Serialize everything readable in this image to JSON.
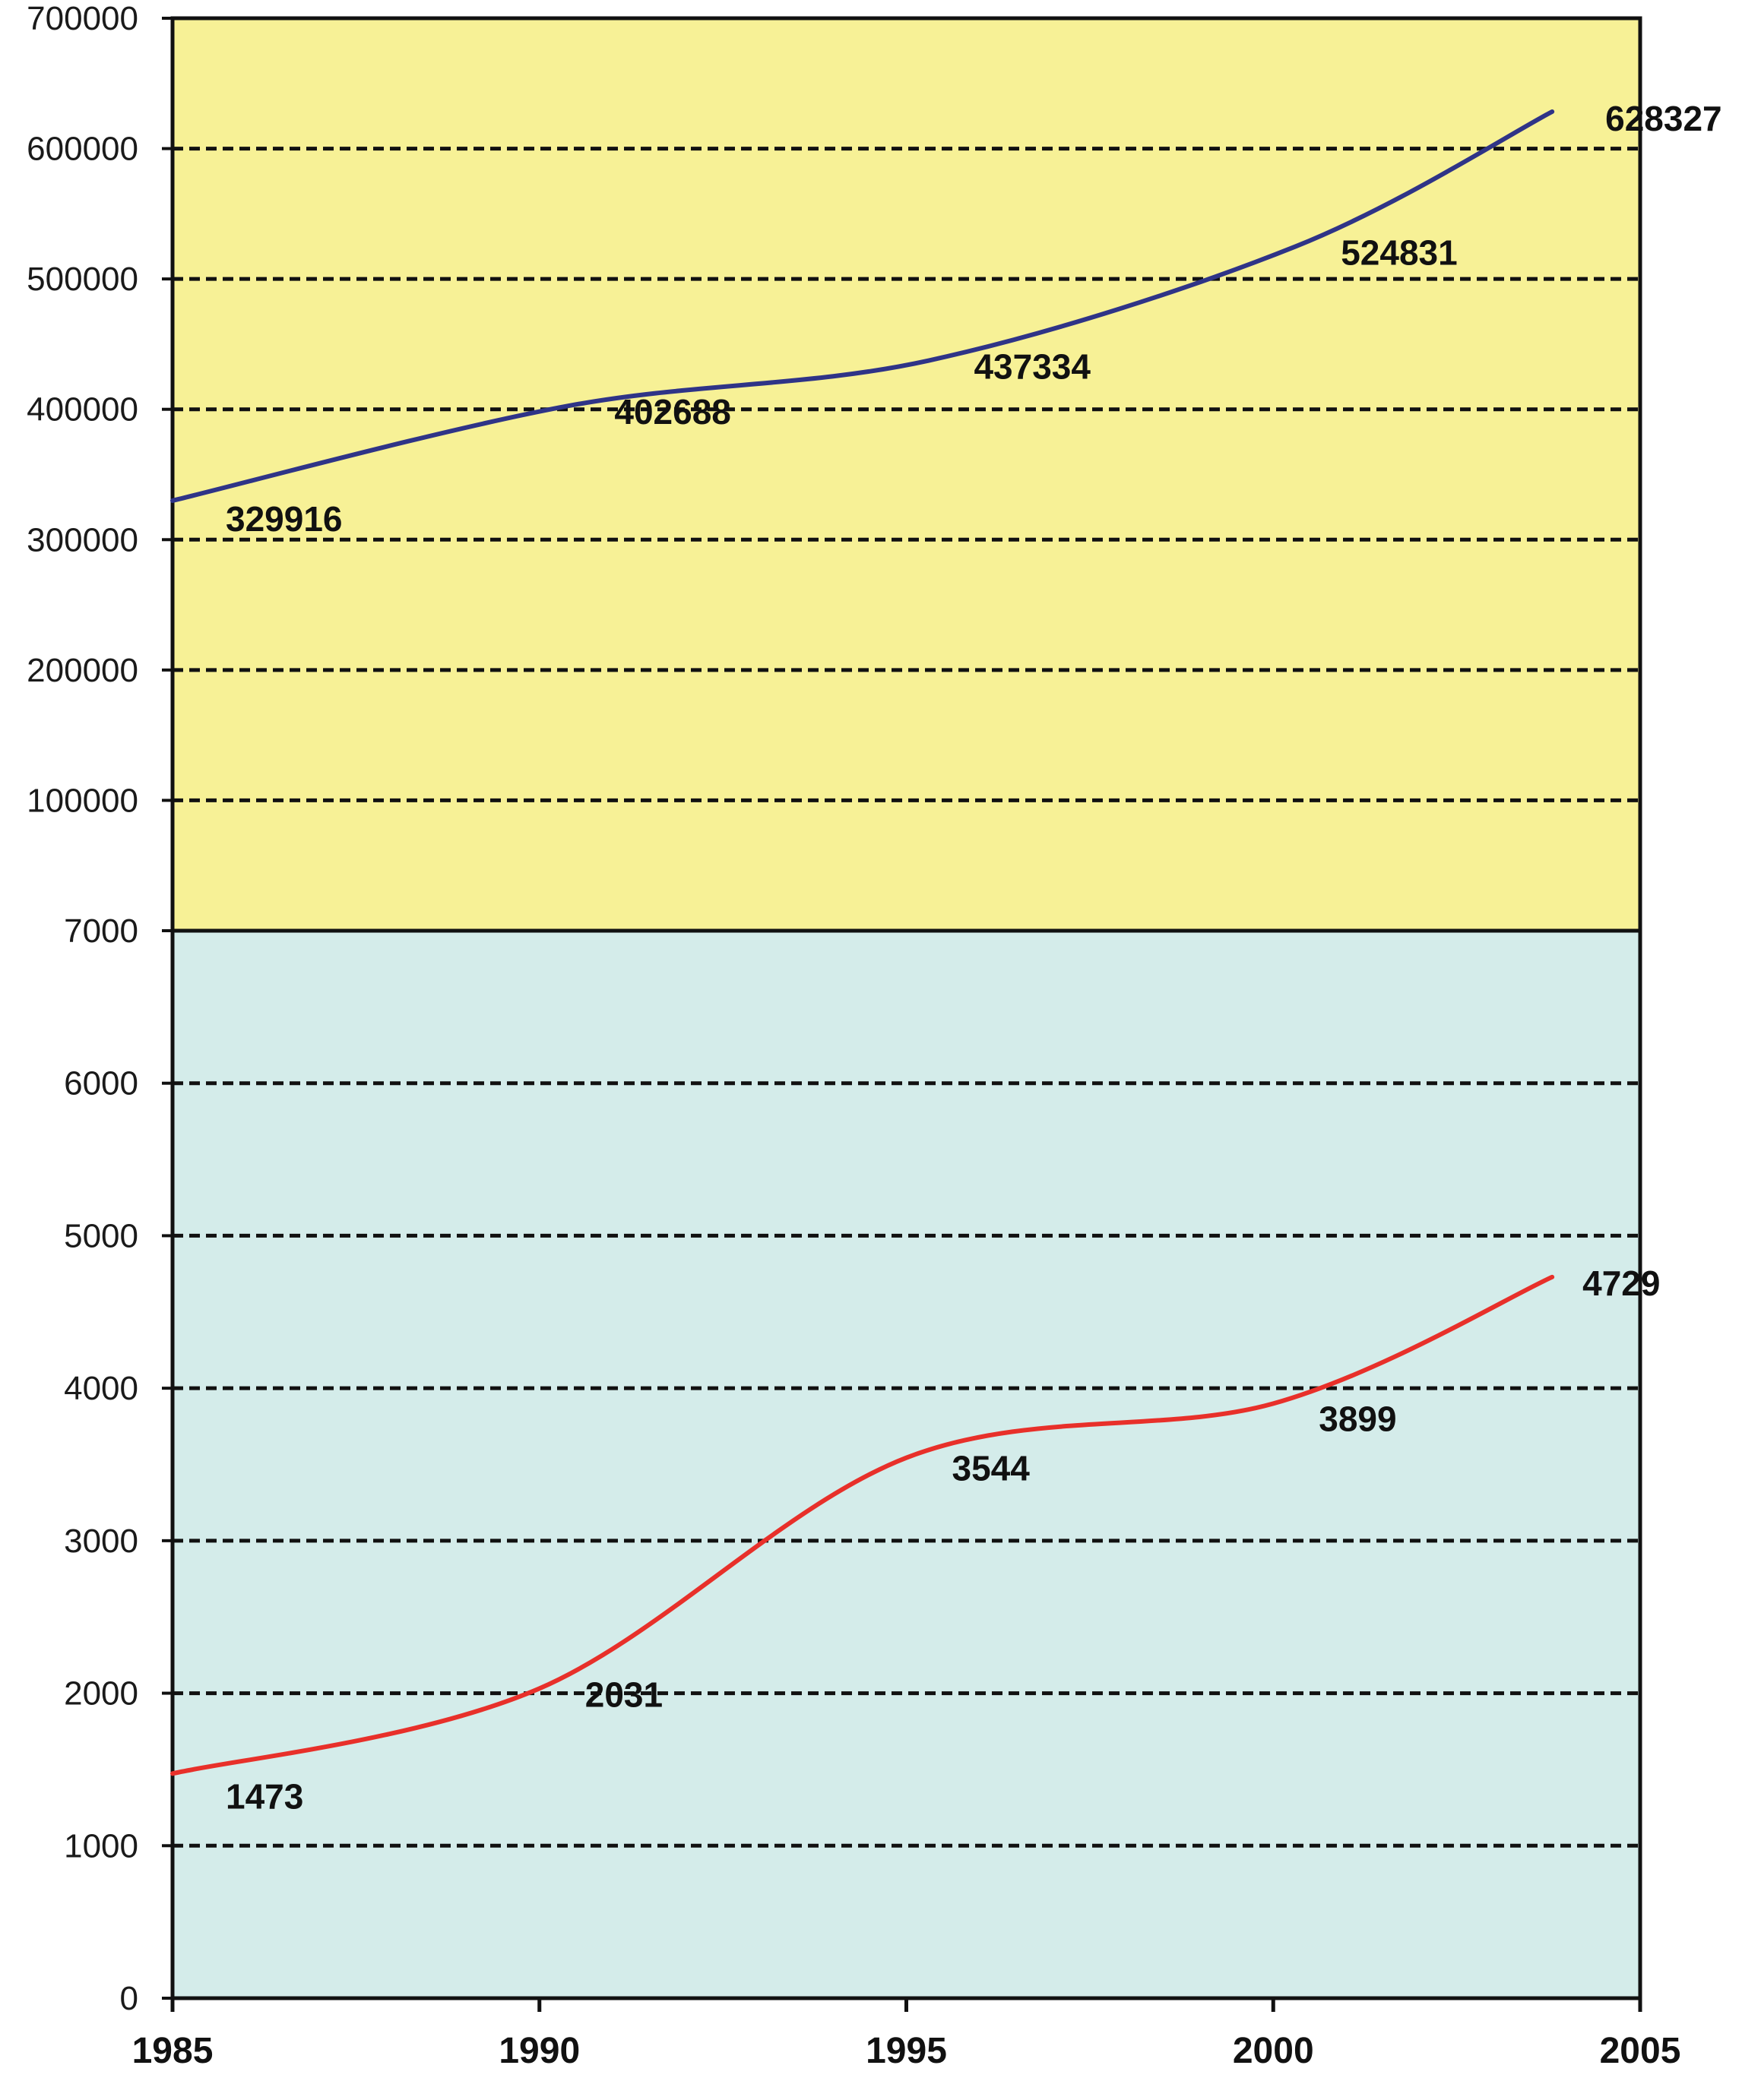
{
  "chart_data": [
    {
      "type": "line",
      "panel": "top",
      "background": "#f7f196",
      "line_color": "#2f3487",
      "x": [
        1985,
        1990,
        1995,
        2000,
        2005
      ],
      "values": [
        329916,
        402688,
        437334,
        524831,
        628327
      ],
      "labels": [
        "329916",
        "402688",
        "437334",
        "524831",
        "628327"
      ],
      "ylim": [
        0,
        700000
      ],
      "yticks": [
        "700000",
        "600000",
        "500000",
        "400000",
        "300000",
        "200000",
        "100000"
      ],
      "grid": true
    },
    {
      "type": "line",
      "panel": "bottom",
      "background": "#d4ecea",
      "line_color": "#e8302a",
      "x": [
        1985,
        1990,
        1995,
        2000,
        2005
      ],
      "values": [
        1473,
        2031,
        3544,
        3899,
        4729
      ],
      "labels": [
        "1473",
        "2031",
        "3544",
        "3899",
        "4729"
      ],
      "ylim": [
        0,
        7000
      ],
      "yticks": [
        "7000",
        "6000",
        "5000",
        "4000",
        "3000",
        "2000",
        "1000",
        "0"
      ],
      "grid": true
    }
  ],
  "x_axis": {
    "range": [
      1985,
      2005
    ],
    "ticks": [
      "1985",
      "1990",
      "1995",
      "2000",
      "2005"
    ]
  }
}
